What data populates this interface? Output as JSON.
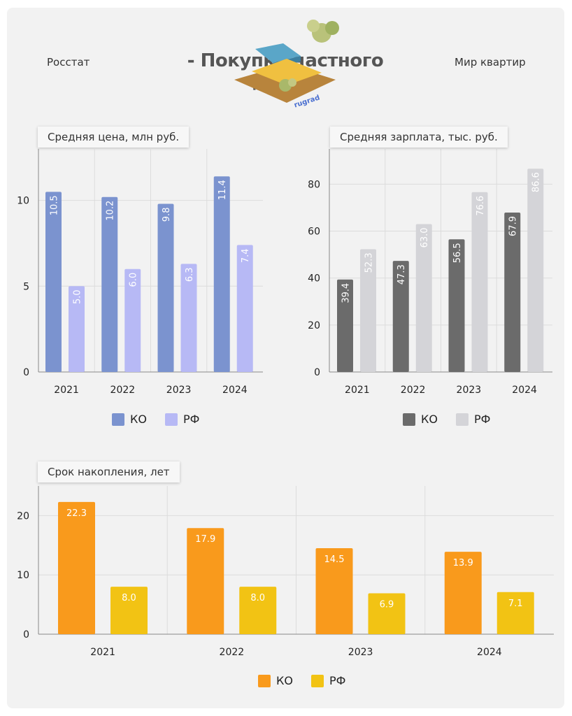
{
  "header": {
    "source_left": "Росстат",
    "title": "- Покупка частного дома -",
    "source_right": "Мир квартир",
    "brand": "rugrad"
  },
  "colors": {
    "background": "#f2f2f2",
    "price_ko": "#7b93cf",
    "price_rf": "#b7b9f5",
    "salary_ko": "#6b6b6b",
    "salary_rf": "#d4d4d8",
    "years_ko": "#f99a1c",
    "years_rf": "#f2c314",
    "grid": "#dcdcdc"
  },
  "chart_data": [
    {
      "id": "price",
      "type": "bar",
      "title": "Средняя цена, млн руб.",
      "categories": [
        "2021",
        "2022",
        "2023",
        "2024"
      ],
      "series": [
        {
          "name": "КО",
          "values": [
            10.5,
            10.2,
            9.8,
            11.4
          ]
        },
        {
          "name": "РФ",
          "values": [
            5.0,
            6.0,
            6.3,
            7.4
          ]
        }
      ],
      "yticks": [
        0,
        5,
        10
      ],
      "ylim": [
        0,
        13
      ],
      "grid": true,
      "legend": "bottom"
    },
    {
      "id": "salary",
      "type": "bar",
      "title": "Средняя зарплата, тыс. руб.",
      "categories": [
        "2021",
        "2022",
        "2023",
        "2024"
      ],
      "series": [
        {
          "name": "КО",
          "values": [
            39.4,
            47.3,
            56.5,
            67.9
          ]
        },
        {
          "name": "РФ",
          "values": [
            52.3,
            63.0,
            76.6,
            86.6
          ]
        }
      ],
      "yticks": [
        0,
        20,
        40,
        60,
        80
      ],
      "ylim": [
        0,
        95
      ],
      "grid": true,
      "legend": "bottom"
    },
    {
      "id": "years",
      "type": "bar",
      "title": "Срок накопления, лет",
      "categories": [
        "2021",
        "2022",
        "2023",
        "2024"
      ],
      "series": [
        {
          "name": "КО",
          "values": [
            22.3,
            17.9,
            14.5,
            13.9
          ]
        },
        {
          "name": "РФ",
          "values": [
            8.0,
            8.0,
            6.9,
            7.1
          ]
        }
      ],
      "yticks": [
        0,
        10,
        20
      ],
      "ylim": [
        0,
        25
      ],
      "grid": true,
      "legend": "bottom"
    }
  ]
}
